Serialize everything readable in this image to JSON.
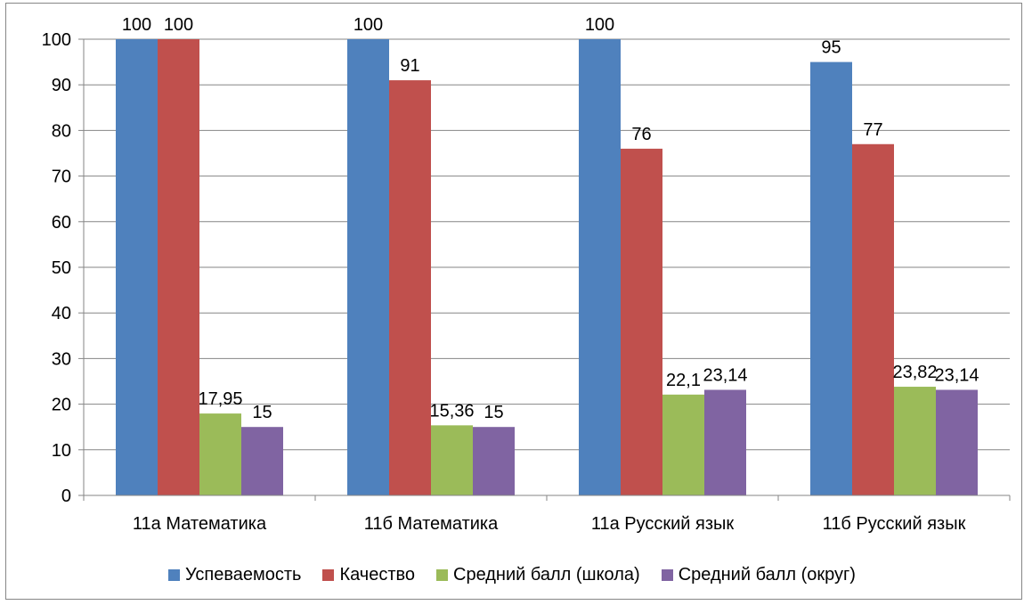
{
  "chart_data": {
    "type": "bar",
    "categories": [
      "11а Математика",
      "11б Математика",
      "11а Русский язык",
      "11б Русский язык"
    ],
    "series": [
      {
        "name": "Успеваемость",
        "color": "#4F81BD",
        "values": [
          100,
          100,
          100,
          95
        ],
        "labels": [
          "100",
          "100",
          "100",
          "95"
        ]
      },
      {
        "name": "Качество",
        "color": "#C0504D",
        "values": [
          100,
          91,
          76,
          77
        ],
        "labels": [
          "100",
          "91",
          "76",
          "77"
        ]
      },
      {
        "name": "Средний балл (школа)",
        "color": "#9BBB59",
        "values": [
          17.95,
          15.36,
          22.1,
          23.82
        ],
        "labels": [
          "17,95",
          "15,36",
          "22,1",
          "23,82"
        ]
      },
      {
        "name": "Средний балл (округ)",
        "color": "#8064A2",
        "values": [
          15,
          15,
          23.14,
          23.14
        ],
        "labels": [
          "15",
          "15",
          "23,14",
          "23,14"
        ]
      }
    ],
    "yticks": [
      "0",
      "10",
      "20",
      "30",
      "40",
      "50",
      "60",
      "70",
      "80",
      "90",
      "100"
    ],
    "ylim": [
      0,
      100
    ],
    "grid": true,
    "legend_position": "bottom"
  }
}
